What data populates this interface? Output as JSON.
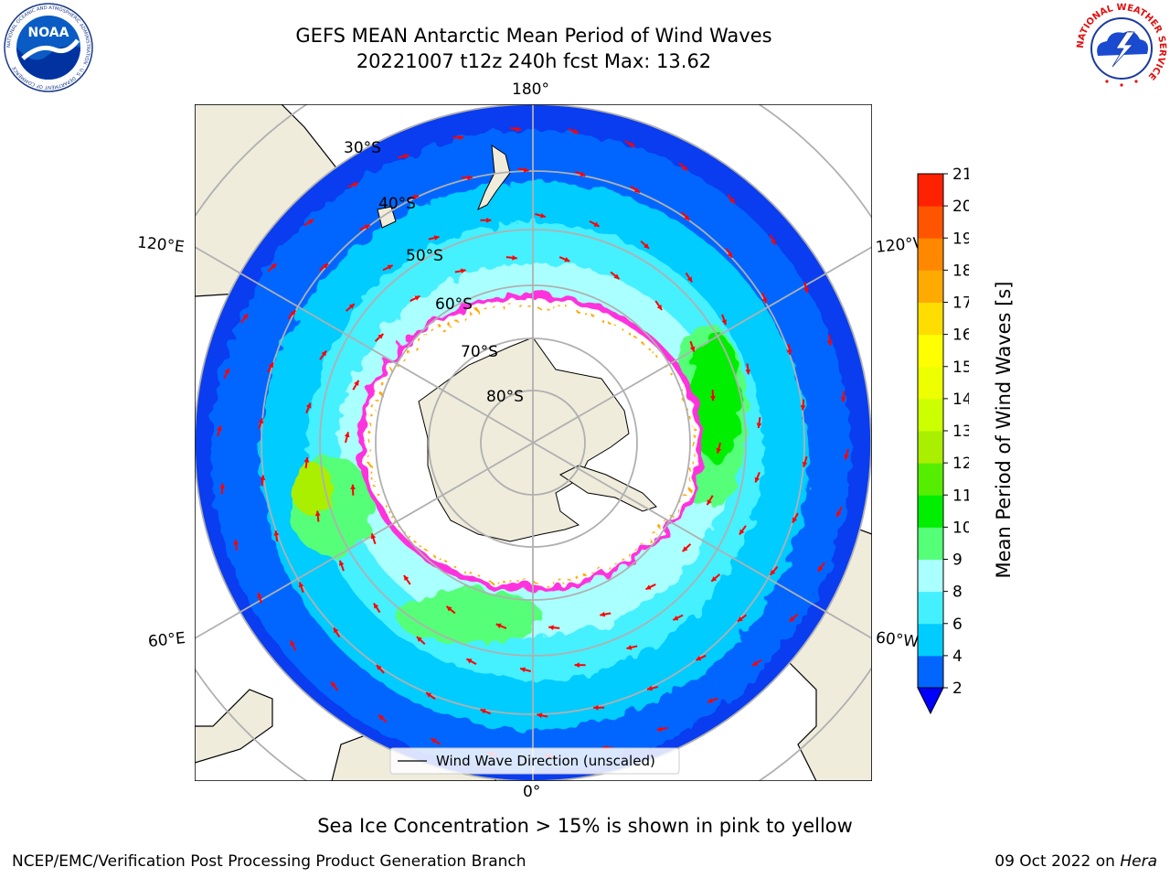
{
  "header": {
    "title_line1": "GEFS MEAN Antarctic Mean Period of Wind Waves",
    "title_line2": "20221007 t12z 240h fcst   Max: 13.62"
  },
  "logos": {
    "left_name": "NOAA",
    "left_ring_text": "NATIONAL OCEANIC AND ATMOSPHERIC ADMINISTRATION · U.S. DEPARTMENT OF COMMERCE",
    "right_ring_text": "NATIONAL WEATHER SERVICE"
  },
  "map": {
    "projection": "south-polar-stereographic",
    "longitude_labels": {
      "top": "180°",
      "bottom": "0°",
      "left_upper": "120°E",
      "left_lower": "60°E",
      "right_upper": "120°W",
      "right_lower": "60°W"
    },
    "latitude_labels": [
      "30°S",
      "40°S",
      "50°S",
      "60°S",
      "70°S",
      "80°S"
    ],
    "legend_label": "Wind Wave Direction (unscaled)",
    "colors": {
      "land": "#efecdc",
      "ocean_missing": "#ffffff",
      "ice_edge": "#ff33dd",
      "ice_inner": "#ffaa00",
      "arrow": "#ff0000",
      "grid": "#b0b0b0"
    }
  },
  "colorbar": {
    "label": "Mean Period of Wind Waves [s]",
    "ticks": [
      "2",
      "4",
      "6",
      "8",
      "9",
      "10",
      "11",
      "12",
      "13",
      "14",
      "15",
      "16",
      "17",
      "18",
      "19",
      "20",
      "21"
    ],
    "colors": [
      "#0066ff",
      "#00ccff",
      "#44f0ff",
      "#aaffff",
      "#55ff77",
      "#00ee00",
      "#55ee00",
      "#aaee00",
      "#ccff00",
      "#eeff00",
      "#ffff00",
      "#ffdd00",
      "#ffaa00",
      "#ff8800",
      "#ff5500",
      "#ff2200"
    ],
    "under_color": "#0000ff",
    "over_color": "#ff0000"
  },
  "caption": "Sea Ice Concentration > 15% is shown in pink to yellow",
  "footer": {
    "left": "NCEP/EMC/Verification Post Processing Product Generation Branch",
    "right_date": "09 Oct 2022 on ",
    "right_host": "Hera"
  }
}
